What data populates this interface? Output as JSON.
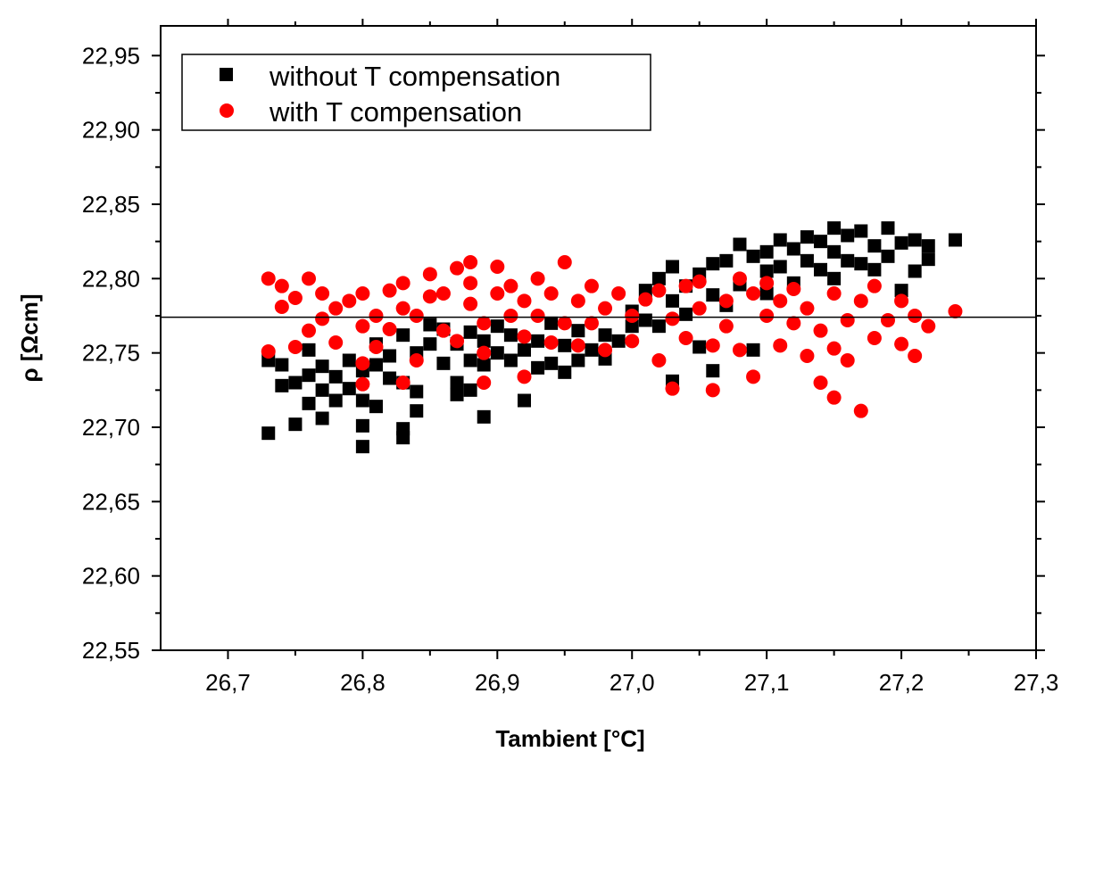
{
  "chart_data": {
    "type": "scatter",
    "xlabel": "Tambient [°C]",
    "ylabel": "ρ [Ωcm]",
    "xlim": [
      26.65,
      27.3
    ],
    "ylim": [
      22.55,
      22.97
    ],
    "x_ticks": [
      26.7,
      26.8,
      26.9,
      27.0,
      27.1,
      27.2,
      27.3
    ],
    "x_tick_labels": [
      "26,7",
      "26,8",
      "26,9",
      "27,0",
      "27,1",
      "27,2",
      "27,3"
    ],
    "y_ticks": [
      22.55,
      22.6,
      22.65,
      22.7,
      22.75,
      22.8,
      22.85,
      22.9,
      22.95
    ],
    "y_tick_labels": [
      "22,55",
      "22,60",
      "22,65",
      "22,70",
      "22,75",
      "22,80",
      "22,85",
      "22,90",
      "22,95"
    ],
    "reference_line_y": 22.774,
    "legend_position": "top-left",
    "grid": false,
    "series": [
      {
        "name": "without T compensation",
        "marker": "square",
        "color": "#000000",
        "points": [
          [
            26.73,
            22.696
          ],
          [
            26.73,
            22.745
          ],
          [
            26.74,
            22.728
          ],
          [
            26.74,
            22.742
          ],
          [
            26.75,
            22.702
          ],
          [
            26.75,
            22.73
          ],
          [
            26.76,
            22.716
          ],
          [
            26.76,
            22.735
          ],
          [
            26.76,
            22.752
          ],
          [
            26.77,
            22.706
          ],
          [
            26.77,
            22.725
          ],
          [
            26.77,
            22.741
          ],
          [
            26.78,
            22.718
          ],
          [
            26.78,
            22.734
          ],
          [
            26.79,
            22.745
          ],
          [
            26.79,
            22.726
          ],
          [
            26.8,
            22.687
          ],
          [
            26.8,
            22.701
          ],
          [
            26.8,
            22.718
          ],
          [
            26.8,
            22.738
          ],
          [
            26.81,
            22.714
          ],
          [
            26.81,
            22.742
          ],
          [
            26.81,
            22.756
          ],
          [
            26.82,
            22.733
          ],
          [
            26.82,
            22.748
          ],
          [
            26.83,
            22.693
          ],
          [
            26.83,
            22.699
          ],
          [
            26.83,
            22.73
          ],
          [
            26.83,
            22.762
          ],
          [
            26.84,
            22.711
          ],
          [
            26.84,
            22.724
          ],
          [
            26.84,
            22.75
          ],
          [
            26.85,
            22.769
          ],
          [
            26.85,
            22.756
          ],
          [
            26.86,
            22.743
          ],
          [
            26.86,
            22.766
          ],
          [
            26.87,
            22.73
          ],
          [
            26.87,
            22.722
          ],
          [
            26.87,
            22.756
          ],
          [
            26.88,
            22.725
          ],
          [
            26.88,
            22.745
          ],
          [
            26.88,
            22.764
          ],
          [
            26.89,
            22.707
          ],
          [
            26.89,
            22.742
          ],
          [
            26.89,
            22.758
          ],
          [
            26.9,
            22.75
          ],
          [
            26.9,
            22.768
          ],
          [
            26.91,
            22.745
          ],
          [
            26.91,
            22.762
          ],
          [
            26.92,
            22.718
          ],
          [
            26.92,
            22.752
          ],
          [
            26.93,
            22.74
          ],
          [
            26.93,
            22.758
          ],
          [
            26.94,
            22.743
          ],
          [
            26.94,
            22.77
          ],
          [
            26.95,
            22.737
          ],
          [
            26.95,
            22.755
          ],
          [
            26.96,
            22.745
          ],
          [
            26.96,
            22.765
          ],
          [
            26.97,
            22.752
          ],
          [
            26.98,
            22.746
          ],
          [
            26.98,
            22.762
          ],
          [
            26.99,
            22.758
          ],
          [
            27.0,
            22.768
          ],
          [
            27.0,
            22.778
          ],
          [
            27.01,
            22.772
          ],
          [
            27.01,
            22.792
          ],
          [
            27.02,
            22.8
          ],
          [
            27.02,
            22.768
          ],
          [
            27.03,
            22.731
          ],
          [
            27.03,
            22.785
          ],
          [
            27.03,
            22.808
          ],
          [
            27.04,
            22.776
          ],
          [
            27.04,
            22.795
          ],
          [
            27.05,
            22.754
          ],
          [
            27.05,
            22.803
          ],
          [
            27.06,
            22.738
          ],
          [
            27.06,
            22.789
          ],
          [
            27.06,
            22.81
          ],
          [
            27.07,
            22.782
          ],
          [
            27.07,
            22.812
          ],
          [
            27.08,
            22.823
          ],
          [
            27.08,
            22.796
          ],
          [
            27.09,
            22.752
          ],
          [
            27.09,
            22.815
          ],
          [
            27.1,
            22.805
          ],
          [
            27.1,
            22.818
          ],
          [
            27.1,
            22.79
          ],
          [
            27.11,
            22.826
          ],
          [
            27.11,
            22.808
          ],
          [
            27.12,
            22.82
          ],
          [
            27.12,
            22.797
          ],
          [
            27.13,
            22.828
          ],
          [
            27.13,
            22.812
          ],
          [
            27.14,
            22.825
          ],
          [
            27.14,
            22.806
          ],
          [
            27.15,
            22.834
          ],
          [
            27.15,
            22.818
          ],
          [
            27.15,
            22.8
          ],
          [
            27.16,
            22.829
          ],
          [
            27.16,
            22.812
          ],
          [
            27.17,
            22.832
          ],
          [
            27.17,
            22.81
          ],
          [
            27.18,
            22.822
          ],
          [
            27.18,
            22.806
          ],
          [
            27.19,
            22.834
          ],
          [
            27.19,
            22.815
          ],
          [
            27.2,
            22.824
          ],
          [
            27.2,
            22.792
          ],
          [
            27.21,
            22.826
          ],
          [
            27.21,
            22.805
          ],
          [
            27.22,
            22.813
          ],
          [
            27.22,
            22.822
          ],
          [
            27.24,
            22.826
          ]
        ]
      },
      {
        "name": "with T compensation",
        "marker": "circle",
        "color": "#ff0000",
        "points": [
          [
            26.73,
            22.8
          ],
          [
            26.73,
            22.751
          ],
          [
            26.74,
            22.781
          ],
          [
            26.74,
            22.795
          ],
          [
            26.75,
            22.754
          ],
          [
            26.75,
            22.787
          ],
          [
            26.76,
            22.765
          ],
          [
            26.76,
            22.8
          ],
          [
            26.77,
            22.773
          ],
          [
            26.77,
            22.79
          ],
          [
            26.78,
            22.78
          ],
          [
            26.78,
            22.757
          ],
          [
            26.79,
            22.785
          ],
          [
            26.8,
            22.729
          ],
          [
            26.8,
            22.743
          ],
          [
            26.8,
            22.768
          ],
          [
            26.8,
            22.79
          ],
          [
            26.81,
            22.775
          ],
          [
            26.81,
            22.754
          ],
          [
            26.82,
            22.792
          ],
          [
            26.82,
            22.766
          ],
          [
            26.83,
            22.73
          ],
          [
            26.83,
            22.78
          ],
          [
            26.83,
            22.797
          ],
          [
            26.84,
            22.745
          ],
          [
            26.84,
            22.775
          ],
          [
            26.85,
            22.788
          ],
          [
            26.85,
            22.803
          ],
          [
            26.86,
            22.765
          ],
          [
            26.86,
            22.79
          ],
          [
            26.87,
            22.807
          ],
          [
            26.87,
            22.758
          ],
          [
            26.88,
            22.783
          ],
          [
            26.88,
            22.797
          ],
          [
            26.88,
            22.811
          ],
          [
            26.89,
            22.73
          ],
          [
            26.89,
            22.75
          ],
          [
            26.89,
            22.77
          ],
          [
            26.9,
            22.79
          ],
          [
            26.9,
            22.808
          ],
          [
            26.91,
            22.775
          ],
          [
            26.91,
            22.795
          ],
          [
            26.92,
            22.734
          ],
          [
            26.92,
            22.761
          ],
          [
            26.92,
            22.785
          ],
          [
            26.93,
            22.8
          ],
          [
            26.93,
            22.775
          ],
          [
            26.94,
            22.757
          ],
          [
            26.94,
            22.79
          ],
          [
            26.95,
            22.811
          ],
          [
            26.95,
            22.77
          ],
          [
            26.96,
            22.755
          ],
          [
            26.96,
            22.785
          ],
          [
            26.97,
            22.795
          ],
          [
            26.97,
            22.77
          ],
          [
            26.98,
            22.752
          ],
          [
            26.98,
            22.78
          ],
          [
            26.99,
            22.79
          ],
          [
            27.0,
            22.775
          ],
          [
            27.0,
            22.758
          ],
          [
            27.01,
            22.786
          ],
          [
            27.02,
            22.745
          ],
          [
            27.02,
            22.792
          ],
          [
            27.03,
            22.726
          ],
          [
            27.03,
            22.773
          ],
          [
            27.04,
            22.795
          ],
          [
            27.04,
            22.76
          ],
          [
            27.05,
            22.78
          ],
          [
            27.05,
            22.798
          ],
          [
            27.06,
            22.725
          ],
          [
            27.06,
            22.755
          ],
          [
            27.07,
            22.785
          ],
          [
            27.07,
            22.768
          ],
          [
            27.08,
            22.8
          ],
          [
            27.08,
            22.752
          ],
          [
            27.09,
            22.734
          ],
          [
            27.09,
            22.79
          ],
          [
            27.1,
            22.775
          ],
          [
            27.1,
            22.797
          ],
          [
            27.11,
            22.755
          ],
          [
            27.11,
            22.785
          ],
          [
            27.12,
            22.77
          ],
          [
            27.12,
            22.793
          ],
          [
            27.13,
            22.748
          ],
          [
            27.13,
            22.78
          ],
          [
            27.14,
            22.73
          ],
          [
            27.14,
            22.765
          ],
          [
            27.15,
            22.72
          ],
          [
            27.15,
            22.79
          ],
          [
            27.15,
            22.753
          ],
          [
            27.16,
            22.772
          ],
          [
            27.16,
            22.745
          ],
          [
            27.17,
            22.711
          ],
          [
            27.17,
            22.785
          ],
          [
            27.18,
            22.76
          ],
          [
            27.18,
            22.795
          ],
          [
            27.19,
            22.772
          ],
          [
            27.2,
            22.756
          ],
          [
            27.2,
            22.785
          ],
          [
            27.21,
            22.748
          ],
          [
            27.21,
            22.775
          ],
          [
            27.22,
            22.768
          ],
          [
            27.24,
            22.778
          ]
        ]
      }
    ]
  }
}
